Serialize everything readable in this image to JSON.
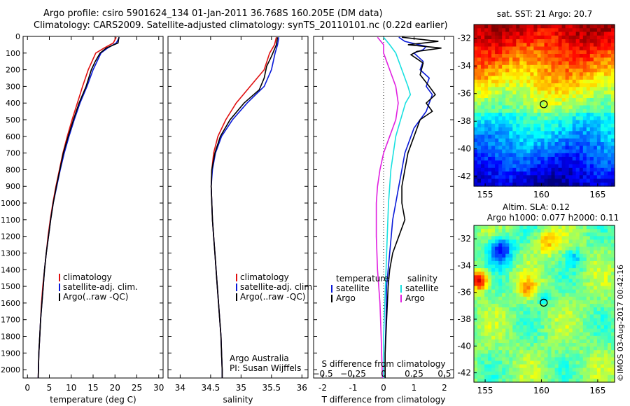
{
  "header": {
    "line1": "Argo profile: csiro 5901624_134 01-Jan-2011 36.768S 160.205E (DM data)",
    "line2": "Climatology: CARS2009. Satellite-adjusted climatology: synTS_20110101.nc (0.22d earlier)"
  },
  "stamp": "©IMOS 03-Aug-2017 00:42:16",
  "colors": {
    "climatology": "#e01010",
    "satellite": "#0a1ad8",
    "argo": "#000000",
    "salinity_sat": "#18e0e0",
    "salinity_argo": "#e020e0"
  },
  "chart_data": [
    {
      "id": "temperature",
      "type": "line",
      "xlabel": "temperature (deg C)",
      "ylabel": "",
      "xlim": [
        -1,
        31
      ],
      "ylim": [
        2050,
        0
      ],
      "xticks": [
        0,
        5,
        10,
        15,
        20,
        25,
        30
      ],
      "yticks": [
        0,
        100,
        200,
        300,
        400,
        500,
        600,
        700,
        800,
        900,
        1000,
        1100,
        1200,
        1300,
        1400,
        1500,
        1600,
        1700,
        1800,
        1900,
        2000
      ],
      "legend": [
        "climatology",
        "satellite-adj. clim.",
        "Argo(..raw -QC)"
      ],
      "legend_loc": "center-left",
      "series": [
        {
          "name": "climatology",
          "points": [
            [
              20.3,
              5
            ],
            [
              19.6,
              40
            ],
            [
              17.5,
              70
            ],
            [
              15.6,
              100
            ],
            [
              13.9,
              200
            ],
            [
              12.6,
              300
            ],
            [
              11.4,
              400
            ],
            [
              10.2,
              500
            ],
            [
              9.1,
              600
            ],
            [
              8.1,
              700
            ],
            [
              7.3,
              800
            ],
            [
              6.5,
              900
            ],
            [
              5.8,
              1000
            ],
            [
              5.2,
              1100
            ],
            [
              4.7,
              1200
            ],
            [
              4.3,
              1300
            ],
            [
              3.9,
              1400
            ],
            [
              3.5,
              1500
            ],
            [
              3.2,
              1600
            ],
            [
              3.0,
              1700
            ],
            [
              2.8,
              1800
            ],
            [
              2.6,
              1900
            ],
            [
              2.5,
              2000
            ],
            [
              2.45,
              2050
            ]
          ]
        },
        {
          "name": "satellite-adj. clim.",
          "points": [
            [
              21.0,
              5
            ],
            [
              20.3,
              40
            ],
            [
              18.3,
              70
            ],
            [
              16.8,
              100
            ],
            [
              15.0,
              200
            ],
            [
              13.6,
              300
            ],
            [
              12.0,
              400
            ],
            [
              10.7,
              500
            ],
            [
              9.5,
              600
            ],
            [
              8.4,
              700
            ],
            [
              7.5,
              800
            ],
            [
              6.7,
              900
            ],
            [
              5.9,
              1000
            ],
            [
              5.3,
              1100
            ],
            [
              4.8,
              1200
            ],
            [
              4.3,
              1300
            ],
            [
              3.9,
              1400
            ],
            [
              3.6,
              1500
            ],
            [
              3.3,
              1600
            ],
            [
              3.0,
              1700
            ],
            [
              2.8,
              1800
            ],
            [
              2.6,
              1900
            ],
            [
              2.5,
              2000
            ],
            [
              2.45,
              2050
            ]
          ]
        },
        {
          "name": "Argo(..raw -QC)",
          "points": [
            [
              20.9,
              5
            ],
            [
              20.7,
              40
            ],
            [
              18.0,
              70
            ],
            [
              16.6,
              100
            ],
            [
              15.5,
              150
            ],
            [
              14.6,
              200
            ],
            [
              13.4,
              300
            ],
            [
              11.8,
              400
            ],
            [
              10.5,
              500
            ],
            [
              9.3,
              600
            ],
            [
              8.2,
              700
            ],
            [
              7.4,
              800
            ],
            [
              6.6,
              900
            ],
            [
              5.9,
              1000
            ],
            [
              5.3,
              1100
            ],
            [
              4.8,
              1200
            ],
            [
              4.3,
              1300
            ],
            [
              3.9,
              1400
            ],
            [
              3.6,
              1500
            ],
            [
              3.3,
              1600
            ],
            [
              3.0,
              1700
            ],
            [
              2.8,
              1800
            ],
            [
              2.6,
              1900
            ],
            [
              2.5,
              2000
            ],
            [
              2.45,
              2050
            ]
          ]
        }
      ]
    },
    {
      "id": "salinity",
      "type": "line",
      "xlabel": "salinity",
      "xlim": [
        33.8,
        36.1
      ],
      "ylim": [
        2050,
        0
      ],
      "xticks": [
        34,
        34.5,
        35,
        35.5,
        36
      ],
      "legend": [
        "climatology",
        "satellite-adj. clim.",
        "Argo(..raw -QC)"
      ],
      "legend_loc": "center-right",
      "annotation": [
        "Argo Australia",
        "PI: Susan Wijffels"
      ],
      "series": [
        {
          "name": "climatology",
          "points": [
            [
              35.58,
              5
            ],
            [
              35.55,
              50
            ],
            [
              35.47,
              100
            ],
            [
              35.38,
              200
            ],
            [
              35.15,
              300
            ],
            [
              34.92,
              400
            ],
            [
              34.75,
              500
            ],
            [
              34.62,
              600
            ],
            [
              34.55,
              700
            ],
            [
              34.52,
              800
            ],
            [
              34.51,
              900
            ],
            [
              34.52,
              1000
            ],
            [
              34.53,
              1100
            ],
            [
              34.55,
              1200
            ],
            [
              34.57,
              1300
            ],
            [
              34.59,
              1400
            ],
            [
              34.61,
              1500
            ],
            [
              34.63,
              1600
            ],
            [
              34.65,
              1700
            ],
            [
              34.67,
              1800
            ],
            [
              34.68,
              1900
            ],
            [
              34.69,
              2000
            ],
            [
              34.69,
              2050
            ]
          ]
        },
        {
          "name": "satellite-adj. clim.",
          "points": [
            [
              35.62,
              5
            ],
            [
              35.6,
              50
            ],
            [
              35.56,
              100
            ],
            [
              35.5,
              200
            ],
            [
              35.38,
              300
            ],
            [
              35.1,
              400
            ],
            [
              34.86,
              500
            ],
            [
              34.68,
              600
            ],
            [
              34.58,
              700
            ],
            [
              34.53,
              800
            ],
            [
              34.51,
              900
            ],
            [
              34.52,
              1000
            ],
            [
              34.53,
              1100
            ],
            [
              34.55,
              1200
            ],
            [
              34.57,
              1300
            ],
            [
              34.59,
              1400
            ],
            [
              34.61,
              1500
            ],
            [
              34.63,
              1600
            ],
            [
              34.65,
              1700
            ],
            [
              34.67,
              1800
            ],
            [
              34.68,
              1900
            ],
            [
              34.69,
              2000
            ],
            [
              34.69,
              2050
            ]
          ]
        },
        {
          "name": "Argo(..raw -QC)",
          "points": [
            [
              35.6,
              5
            ],
            [
              35.58,
              50
            ],
            [
              35.5,
              120
            ],
            [
              35.42,
              180
            ],
            [
              35.38,
              250
            ],
            [
              35.3,
              320
            ],
            [
              35.05,
              400
            ],
            [
              34.82,
              500
            ],
            [
              34.66,
              600
            ],
            [
              34.57,
              700
            ],
            [
              34.52,
              800
            ],
            [
              34.51,
              900
            ],
            [
              34.52,
              1000
            ],
            [
              34.53,
              1100
            ],
            [
              34.55,
              1200
            ],
            [
              34.57,
              1300
            ],
            [
              34.59,
              1400
            ],
            [
              34.61,
              1500
            ],
            [
              34.63,
              1600
            ],
            [
              34.65,
              1700
            ],
            [
              34.67,
              1800
            ],
            [
              34.68,
              1900
            ],
            [
              34.69,
              2000
            ],
            [
              34.69,
              2050
            ]
          ]
        }
      ]
    },
    {
      "id": "difference",
      "type": "line",
      "xlabel": "T difference from climatology",
      "xlabel2": "S difference from climatology",
      "xlim": [
        -2.3,
        2.3
      ],
      "ylim": [
        2050,
        0
      ],
      "xticks": [
        -2,
        -1,
        0,
        1,
        2
      ],
      "s_ticks": [
        -0.5,
        -0.25,
        0,
        0.25,
        0.5
      ],
      "legend_headers": [
        "temperature",
        "salinity"
      ],
      "legend": [
        "satellite",
        "Argo",
        "satellite",
        "Argo"
      ],
      "series": [
        {
          "name": "T satellite",
          "points": [
            [
              0.5,
              5
            ],
            [
              0.7,
              30
            ],
            [
              1.4,
              60
            ],
            [
              1.3,
              80
            ],
            [
              1.0,
              100
            ],
            [
              1.3,
              150
            ],
            [
              1.2,
              200
            ],
            [
              1.5,
              250
            ],
            [
              1.4,
              300
            ],
            [
              1.6,
              350
            ],
            [
              1.5,
              400
            ],
            [
              1.4,
              450
            ],
            [
              1.2,
              500
            ],
            [
              1.0,
              550
            ],
            [
              0.9,
              600
            ],
            [
              0.8,
              650
            ],
            [
              0.7,
              700
            ],
            [
              0.6,
              800
            ],
            [
              0.5,
              900
            ],
            [
              0.4,
              1000
            ],
            [
              0.3,
              1100
            ],
            [
              0.25,
              1200
            ],
            [
              0.2,
              1300
            ],
            [
              0.15,
              1400
            ],
            [
              0.1,
              1500
            ],
            [
              0.08,
              1700
            ],
            [
              0.05,
              1900
            ],
            [
              0.05,
              2050
            ]
          ]
        },
        {
          "name": "T Argo",
          "points": [
            [
              0.6,
              5
            ],
            [
              1.8,
              30
            ],
            [
              0.8,
              50
            ],
            [
              1.9,
              70
            ],
            [
              1.1,
              90
            ],
            [
              0.9,
              110
            ],
            [
              1.3,
              160
            ],
            [
              1.2,
              230
            ],
            [
              1.5,
              300
            ],
            [
              1.7,
              350
            ],
            [
              1.4,
              400
            ],
            [
              1.6,
              450
            ],
            [
              1.2,
              500
            ],
            [
              1.0,
              600
            ],
            [
              0.8,
              700
            ],
            [
              0.7,
              800
            ],
            [
              0.6,
              900
            ],
            [
              0.6,
              1000
            ],
            [
              0.7,
              1100
            ],
            [
              0.5,
              1200
            ],
            [
              0.3,
              1300
            ],
            [
              0.2,
              1400
            ],
            [
              0.15,
              1500
            ],
            [
              0.1,
              1700
            ],
            [
              0.05,
              1900
            ],
            [
              0.05,
              2050
            ]
          ]
        },
        {
          "name": "S satellite",
          "points": [
            [
              0.0,
              5
            ],
            [
              0.05,
              50
            ],
            [
              0.1,
              100
            ],
            [
              0.15,
              200
            ],
            [
              0.2,
              300
            ],
            [
              0.22,
              350
            ],
            [
              0.18,
              400
            ],
            [
              0.14,
              500
            ],
            [
              0.1,
              600
            ],
            [
              0.08,
              700
            ],
            [
              0.06,
              800
            ],
            [
              0.05,
              900
            ],
            [
              0.04,
              1000
            ],
            [
              0.03,
              1200
            ],
            [
              0.02,
              1400
            ],
            [
              0.01,
              1600
            ],
            [
              0.0,
              1800
            ],
            [
              0.0,
              2050
            ]
          ]
        },
        {
          "name": "S Argo",
          "points": [
            [
              -0.05,
              5
            ],
            [
              0.0,
              50
            ],
            [
              0.0,
              100
            ],
            [
              0.05,
              200
            ],
            [
              0.1,
              300
            ],
            [
              0.12,
              400
            ],
            [
              0.1,
              500
            ],
            [
              0.05,
              600
            ],
            [
              0.0,
              700
            ],
            [
              -0.03,
              800
            ],
            [
              -0.05,
              900
            ],
            [
              -0.06,
              1000
            ],
            [
              -0.06,
              1200
            ],
            [
              -0.05,
              1400
            ],
            [
              -0.03,
              1600
            ],
            [
              -0.02,
              1800
            ],
            [
              -0.01,
              2050
            ]
          ]
        }
      ]
    },
    {
      "id": "map-sst",
      "type": "heatmap",
      "title": "sat. SST: 21 Argo: 20.7",
      "xlim": [
        154,
        166.5
      ],
      "ylim": [
        -42.7,
        -31
      ],
      "xticks": [
        155,
        160,
        165
      ],
      "yticks": [
        -32,
        -34,
        -36,
        -38,
        -40,
        -42
      ],
      "marker": {
        "lon": 160.205,
        "lat": -36.768
      }
    },
    {
      "id": "map-sla",
      "type": "heatmap",
      "title": [
        "Altim. SLA: 0.12",
        "Argo h1000: 0.077 h2000: 0.11"
      ],
      "xlim": [
        154,
        166.5
      ],
      "ylim": [
        -42.7,
        -31
      ],
      "xticks": [
        155,
        160,
        165
      ],
      "yticks": [
        -32,
        -34,
        -36,
        -38,
        -40,
        -42
      ],
      "marker": {
        "lon": 160.205,
        "lat": -36.768
      }
    }
  ]
}
